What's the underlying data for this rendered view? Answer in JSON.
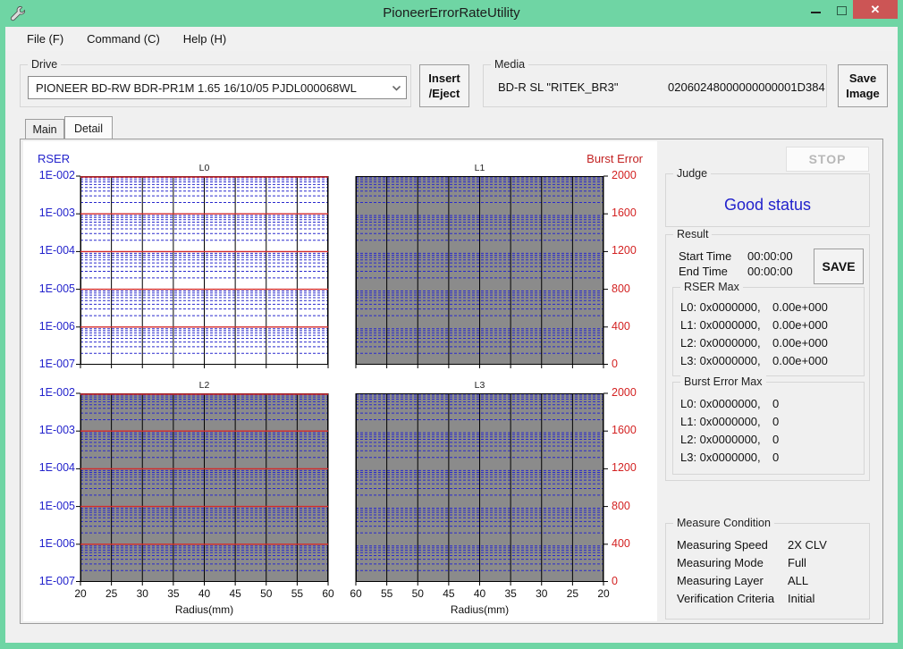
{
  "window": {
    "title": "PioneerErrorRateUtility"
  },
  "icons": {
    "app": "wrench-icon",
    "minimize": "minimize-icon",
    "maximize": "maximize-icon",
    "close_glyph": "✕",
    "combo_arrow": "chevron-down-icon"
  },
  "menu": {
    "items": [
      {
        "label": "File (F)"
      },
      {
        "label": "Command (C)"
      },
      {
        "label": "Help (H)"
      }
    ]
  },
  "drive": {
    "group_label": "Drive",
    "selected": "PIONEER BD-RW BDR-PR1M  1.65 16/10/05  PJDL000068WL"
  },
  "insert_eject_button": {
    "line1": "Insert",
    "line2": "/Eject"
  },
  "media": {
    "group_label": "Media",
    "type": "BD-R SL \"RITEK_BR3\"",
    "id": "02060248000000000001D384"
  },
  "save_image_button": {
    "line1": "Save",
    "line2": "Image"
  },
  "tabs": [
    {
      "label": "Main",
      "active": false
    },
    {
      "label": "Detail",
      "active": true
    }
  ],
  "stop_button": {
    "label": "STOP"
  },
  "judge": {
    "group_label": "Judge",
    "status": "Good status",
    "status_color": "#2222cc"
  },
  "result": {
    "group_label": "Result",
    "start_time_label": "Start Time",
    "start_time": "00:00:00",
    "end_time_label": "End Time",
    "end_time": "00:00:00",
    "save_button": "SAVE",
    "rser_max": {
      "group_label": "RSER Max",
      "rows": [
        {
          "label": "L0: 0x0000000,",
          "value": "0.00e+000"
        },
        {
          "label": "L1: 0x0000000,",
          "value": "0.00e+000"
        },
        {
          "label": "L2: 0x0000000,",
          "value": "0.00e+000"
        },
        {
          "label": "L3: 0x0000000,",
          "value": "0.00e+000"
        }
      ]
    },
    "burst_error_max": {
      "group_label": "Burst Error Max",
      "rows": [
        {
          "label": "L0: 0x0000000,",
          "value": "0"
        },
        {
          "label": "L1: 0x0000000,",
          "value": "0"
        },
        {
          "label": "L2: 0x0000000,",
          "value": "0"
        },
        {
          "label": "L3: 0x0000000,",
          "value": "0"
        }
      ]
    }
  },
  "measure_condition": {
    "group_label": "Measure Condition",
    "rows": [
      {
        "label": "Measuring Speed",
        "value": "2X CLV"
      },
      {
        "label": "Measuring Mode",
        "value": "Full"
      },
      {
        "label": "Measuring Layer",
        "value": "ALL"
      },
      {
        "label": "Verification Criteria",
        "value": "Initial"
      }
    ]
  },
  "chart_data": {
    "type": "line",
    "left_axis_label": "RSER",
    "right_axis_label": "Burst Error",
    "y_scale": "log",
    "y_left_ticks": [
      "1E-002",
      "1E-003",
      "1E-004",
      "1E-005",
      "1E-006",
      "1E-007"
    ],
    "y_right_ticks": [
      "2000",
      "1600",
      "1200",
      "800",
      "400",
      "0"
    ],
    "y_left_range": [
      "1E-002",
      "1E-007"
    ],
    "y_right_range": [
      2000,
      0
    ],
    "xlabel": "Radius(mm)",
    "x_range": [
      20,
      60
    ],
    "grid": {
      "vertical_color": "#000000",
      "minor_color": "#2a2acd",
      "decade_color": "#d42a2a"
    },
    "panels": [
      {
        "title": "L0",
        "plot_bg": "#ffffff",
        "decade_lines_red": true,
        "x_tick_labels": [],
        "series": []
      },
      {
        "title": "L1",
        "plot_bg": "#8b8b8b",
        "decade_lines_red": false,
        "x_tick_labels": [],
        "series": []
      },
      {
        "title": "L2",
        "plot_bg": "#8b8b8b",
        "decade_lines_red": true,
        "x_tick_labels": [
          "20",
          "25",
          "30",
          "35",
          "40",
          "45",
          "50",
          "55",
          "60"
        ],
        "series": []
      },
      {
        "title": "L3",
        "plot_bg": "#8b8b8b",
        "decade_lines_red": false,
        "x_tick_labels": [
          "60",
          "55",
          "50",
          "45",
          "40",
          "35",
          "30",
          "25",
          "20"
        ],
        "series": []
      }
    ],
    "note": "No measurement data plotted; all series empty (measurement not run, times 00:00:00)"
  }
}
